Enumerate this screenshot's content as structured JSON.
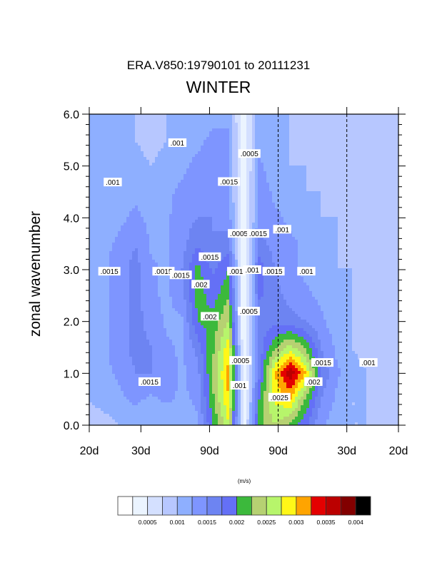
{
  "chart_data": {
    "type": "heatmap",
    "subtype": "filled-contour",
    "title": "ERA.V850:19790101 to 20111231",
    "subtitle": "WINTER",
    "xlabel": "",
    "ylabel": "zonal wavenumber",
    "units": "(m/s)",
    "x_range": [
      -0.05,
      0.05
    ],
    "y_range": [
      0,
      6
    ],
    "x_ticks": [
      {
        "value": -0.05,
        "label": "20d"
      },
      {
        "value": -0.0333,
        "label": "30d"
      },
      {
        "value": -0.0111,
        "label": "90d"
      },
      {
        "value": 0.0111,
        "label": "90d"
      },
      {
        "value": 0.0333,
        "label": "30d"
      },
      {
        "value": 0.05,
        "label": "20d"
      }
    ],
    "dashed_x_lines": [
      0.0111,
      0.0333
    ],
    "y_ticks": [
      {
        "value": 0,
        "label": "0.0"
      },
      {
        "value": 1,
        "label": "1.0"
      },
      {
        "value": 2,
        "label": "2.0"
      },
      {
        "value": 3,
        "label": "3.0"
      },
      {
        "value": 4,
        "label": "4.0"
      },
      {
        "value": 5,
        "label": "5.0"
      },
      {
        "value": 6,
        "label": "6.0"
      }
    ],
    "levels": [
      0.00025,
      0.0005,
      0.00075,
      0.001,
      0.00125,
      0.0015,
      0.00175,
      0.002,
      0.00225,
      0.0025,
      0.00275,
      0.003,
      0.00325,
      0.0035,
      0.00375,
      0.004
    ],
    "colors": [
      "#ffffff",
      "#ebf4ff",
      "#d4e0ff",
      "#b7c7ff",
      "#8eafff",
      "#7e95ff",
      "#6d84f2",
      "#6470f6",
      "#3cb93c",
      "#b6d172",
      "#b7f56b",
      "#fff718",
      "#ffa400",
      "#e40000",
      "#bb0000",
      "#820000",
      "#000000"
    ],
    "colorbar_labels": [
      {
        "level_index": 1,
        "label": "0.0005"
      },
      {
        "level_index": 3,
        "label": "0.001"
      },
      {
        "level_index": 5,
        "label": "0.0015"
      },
      {
        "level_index": 7,
        "label": "0.002"
      },
      {
        "level_index": 9,
        "label": "0.0025"
      },
      {
        "level_index": 11,
        "label": "0.003"
      },
      {
        "level_index": 13,
        "label": "0.0035"
      },
      {
        "level_index": 15,
        "label": "0.004"
      }
    ],
    "grid": {
      "x_start": -0.05,
      "x_step": 0.005,
      "y_start": 0,
      "y_step": 0.5,
      "z_scale": 0.0001,
      "z": [
        [
          9,
          9,
          10,
          11,
          11,
          10,
          11,
          12,
          20,
          27,
          3,
          22,
          25,
          22,
          18,
          13,
          11,
          10,
          10,
          9,
          8
        ],
        [
          10,
          11,
          12,
          13,
          12,
          13,
          12,
          13,
          22,
          30,
          2,
          20,
          28,
          30,
          22,
          15,
          12,
          10,
          10,
          9,
          8
        ],
        [
          11,
          12,
          13,
          15,
          15,
          14,
          12,
          14,
          23,
          31,
          2,
          17,
          30,
          37,
          30,
          17,
          13,
          11,
          10,
          9,
          8
        ],
        [
          11,
          12,
          14,
          16,
          15,
          13,
          12,
          16,
          22,
          29,
          2,
          16,
          22,
          26,
          22,
          15,
          12,
          10,
          9,
          9,
          8
        ],
        [
          11,
          12,
          14,
          16,
          14,
          12,
          12,
          20,
          21,
          25,
          2,
          16,
          17,
          16,
          15,
          13,
          11,
          10,
          9,
          9,
          8
        ],
        [
          11,
          12,
          14,
          16,
          13,
          12,
          14,
          21,
          19,
          22,
          2,
          18,
          16,
          14,
          13,
          12,
          11,
          10,
          9,
          9,
          8
        ],
        [
          11,
          12,
          14,
          16,
          13,
          12,
          15,
          21,
          17,
          20,
          2,
          19,
          15,
          13,
          12,
          11,
          10,
          10,
          9,
          9,
          8
        ],
        [
          10,
          12,
          13,
          15,
          12,
          12,
          14,
          17,
          15,
          16,
          2,
          16,
          14,
          13,
          12,
          11,
          10,
          9,
          9,
          9,
          8
        ],
        [
          10,
          11,
          12,
          13,
          12,
          12,
          14,
          15,
          15,
          14,
          3,
          14,
          13,
          12,
          11,
          10,
          10,
          9,
          9,
          9,
          8
        ],
        [
          10,
          11,
          12,
          12,
          11,
          12,
          13,
          14,
          14,
          13,
          3,
          14,
          12,
          11,
          10,
          10,
          9,
          9,
          9,
          9,
          8
        ],
        [
          10,
          11,
          11,
          11,
          10,
          11,
          12,
          13,
          14,
          13,
          3,
          13,
          11,
          10,
          10,
          9,
          9,
          9,
          9,
          8,
          8
        ],
        [
          10,
          11,
          11,
          10,
          9,
          10,
          12,
          12,
          13,
          13,
          3,
          12,
          11,
          10,
          9,
          9,
          9,
          9,
          9,
          8,
          8
        ],
        [
          10,
          10,
          11,
          10,
          9,
          10,
          11,
          11,
          12,
          12,
          3,
          12,
          11,
          10,
          9,
          9,
          9,
          9,
          9,
          8,
          8
        ]
      ]
    },
    "contour_labels": [
      {
        "text": ".001",
        "x": -0.0215,
        "y": 5.45
      },
      {
        "text": ".001",
        "x": -0.0424,
        "y": 4.69
      },
      {
        "text": ".0005",
        "x": 0.0018,
        "y": 5.24
      },
      {
        "text": ".0015",
        "x": -0.0048,
        "y": 4.7
      },
      {
        "text": ".0005",
        "x": -0.0016,
        "y": 3.7
      },
      {
        "text": ".0015",
        "x": 0.0046,
        "y": 3.7
      },
      {
        "text": ".001",
        "x": 0.0124,
        "y": 3.78
      },
      {
        "text": ".0015",
        "x": -0.0435,
        "y": 2.97
      },
      {
        "text": ".0015",
        "x": -0.026,
        "y": 2.97
      },
      {
        "text": ".0015",
        "x": -0.011,
        "y": 3.25
      },
      {
        "text": ".0015",
        "x": -0.0204,
        "y": 2.9
      },
      {
        "text": ".002",
        "x": -0.014,
        "y": 2.72
      },
      {
        "text": ".001",
        "x": -0.0025,
        "y": 2.97
      },
      {
        "text": ".001",
        "x": 0.0027,
        "y": 3.0
      },
      {
        "text": ".0015",
        "x": 0.0096,
        "y": 2.97
      },
      {
        "text": ".001",
        "x": 0.0202,
        "y": 2.97
      },
      {
        "text": ".002",
        "x": -0.011,
        "y": 2.1
      },
      {
        "text": ".0005",
        "x": 0.0016,
        "y": 2.2
      },
      {
        "text": ".0015",
        "x": 0.0254,
        "y": 1.21
      },
      {
        "text": ".0005",
        "x": -0.0011,
        "y": 1.25
      },
      {
        "text": ".0015",
        "x": -0.0305,
        "y": 0.84
      },
      {
        "text": ".001",
        "x": -0.0014,
        "y": 0.77
      },
      {
        "text": ".002",
        "x": 0.0225,
        "y": 0.84
      },
      {
        "text": ".0025",
        "x": 0.0115,
        "y": 0.54
      },
      {
        "text": ".001",
        "x": 0.0403,
        "y": 1.21
      }
    ]
  }
}
